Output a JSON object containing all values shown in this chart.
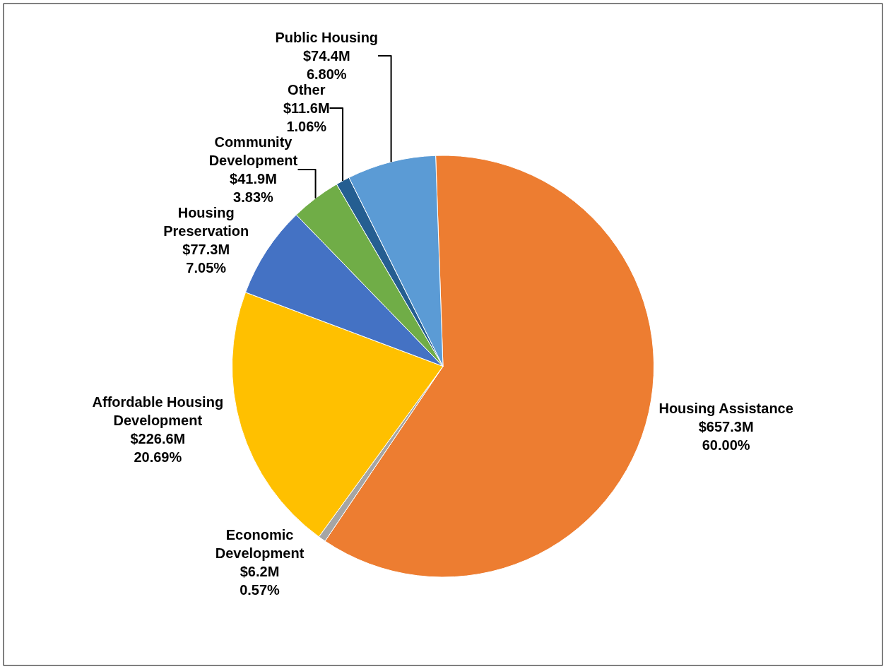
{
  "chart_data": {
    "type": "pie",
    "categories": [
      "Housing Assistance",
      "Economic Development",
      "Affordable Housing Development",
      "Housing Preservation",
      "Community Development",
      "Other",
      "Public Housing"
    ],
    "values": [
      60.0,
      0.57,
      20.69,
      7.05,
      3.83,
      1.06,
      6.8
    ],
    "value_labels": [
      "$657.3M\n60.00%",
      "$6.2M\n0.57%",
      "$226.6M\n20.69%",
      "$77.3M\n7.05%",
      "$41.9M\n3.83%",
      "$11.6M\n1.06%",
      "$74.4M\n6.80%"
    ],
    "colors": [
      "#ed7d31",
      "#a5a5a5",
      "#ffc000",
      "#4472c4",
      "#70ad47",
      "#255e91",
      "#5b9bd5"
    ],
    "legend": false
  }
}
